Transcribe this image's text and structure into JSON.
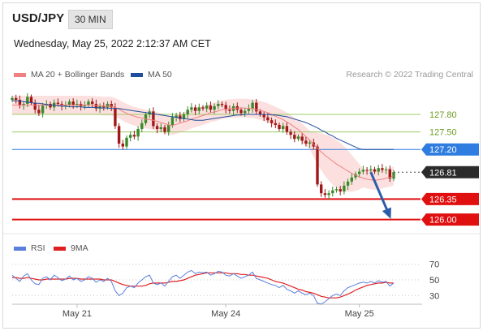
{
  "header": {
    "pair": "USD/JPY",
    "timeframe": "30 MIN"
  },
  "timestamp": "Wednesday, May 25, 2022 2:12:37 AM CET",
  "legend": {
    "ma20": {
      "label": "MA 20 + Bollinger Bands",
      "color": "#f08080"
    },
    "ma50": {
      "label": "MA 50",
      "color": "#1f4e9c"
    }
  },
  "credit": "Research © 2022 Trading Central",
  "rsi_legend": {
    "rsi": {
      "label": "RSI",
      "color": "#5b7fdc"
    },
    "ma9": {
      "label": "9MA",
      "color": "#e02020"
    }
  },
  "chart_data": [
    {
      "type": "candlestick",
      "ylim": [
        125.8,
        128.3
      ],
      "xlim": [
        0,
        100
      ],
      "date_ticks": [
        {
          "label": "May 21",
          "x": 17
        },
        {
          "label": "May 24",
          "x": 56
        },
        {
          "label": "May 25",
          "x": 91
        }
      ],
      "close": [
        128.08,
        128.05,
        127.95,
        127.98,
        128.1,
        128.0,
        127.88,
        127.82,
        127.95,
        127.98,
        127.92,
        128.0,
        127.98,
        127.94,
        127.96,
        128.02,
        127.96,
        127.98,
        127.94,
        127.96,
        128.02,
        127.98,
        127.9,
        127.94,
        127.92,
        127.98,
        127.92,
        127.6,
        127.3,
        127.25,
        127.4,
        127.45,
        127.42,
        127.55,
        127.65,
        127.8,
        127.85,
        127.6,
        127.55,
        127.58,
        127.5,
        127.62,
        127.75,
        127.78,
        127.72,
        127.8,
        127.88,
        127.92,
        127.86,
        127.92,
        127.9,
        127.95,
        127.88,
        127.94,
        127.98,
        127.96,
        127.88,
        127.86,
        127.94,
        127.88,
        127.82,
        127.86,
        127.9,
        128.0,
        127.85,
        127.8,
        127.75,
        127.7,
        127.65,
        127.62,
        127.55,
        127.6,
        127.5,
        127.45,
        127.38,
        127.42,
        127.35,
        127.3,
        127.32,
        127.25,
        126.6,
        126.45,
        126.42,
        126.45,
        126.5,
        126.52,
        126.48,
        126.58,
        126.65,
        126.72,
        126.78,
        126.82,
        126.85,
        126.84,
        126.86,
        126.82,
        126.88,
        126.85,
        126.86,
        126.7,
        126.81
      ],
      "ma20": [
        127.96,
        127.96,
        127.96,
        127.96,
        127.96,
        127.96,
        127.96,
        127.96,
        127.96,
        127.96,
        127.96,
        127.96,
        127.96,
        127.96,
        127.96,
        127.96,
        127.96,
        127.96,
        127.96,
        127.96,
        127.96,
        127.96,
        127.95,
        127.95,
        127.94,
        127.94,
        127.94,
        127.92,
        127.89,
        127.85,
        127.82,
        127.79,
        127.77,
        127.75,
        127.74,
        127.72,
        127.71,
        127.7,
        127.68,
        127.66,
        127.64,
        127.62,
        127.61,
        127.63,
        127.65,
        127.67,
        127.69,
        127.72,
        127.74,
        127.76,
        127.78,
        127.8,
        127.83,
        127.84,
        127.86,
        127.88,
        127.89,
        127.9,
        127.9,
        127.91,
        127.91,
        127.91,
        127.9,
        127.9,
        127.88,
        127.87,
        127.85,
        127.83,
        127.8,
        127.77,
        127.74,
        127.71,
        127.67,
        127.63,
        127.58,
        127.54,
        127.48,
        127.42,
        127.36,
        127.29,
        127.22,
        127.16,
        127.1,
        127.05,
        127.0,
        126.95,
        126.91,
        126.87,
        126.83,
        126.79,
        126.76,
        126.73,
        126.71,
        126.69,
        126.68,
        126.67,
        126.68,
        126.69,
        126.71,
        126.72,
        126.75
      ],
      "ma50": [
        128.04,
        128.03,
        128.03,
        128.02,
        128.01,
        128.0,
        127.99,
        127.99,
        127.98,
        127.97,
        127.96,
        127.96,
        127.95,
        127.94,
        127.94,
        127.93,
        127.93,
        127.93,
        127.93,
        127.92,
        127.92,
        127.92,
        127.92,
        127.91,
        127.91,
        127.91,
        127.9,
        127.9,
        127.9,
        127.89,
        127.88,
        127.87,
        127.86,
        127.85,
        127.84,
        127.83,
        127.82,
        127.81,
        127.8,
        127.79,
        127.78,
        127.77,
        127.76,
        127.75,
        127.74,
        127.73,
        127.72,
        127.71,
        127.7,
        127.7,
        127.7,
        127.71,
        127.72,
        127.73,
        127.74,
        127.75,
        127.76,
        127.77,
        127.78,
        127.79,
        127.79,
        127.8,
        127.8,
        127.8,
        127.8,
        127.8,
        127.8,
        127.8,
        127.79,
        127.79,
        127.78,
        127.77,
        127.76,
        127.74,
        127.72,
        127.7,
        127.68,
        127.66,
        127.63,
        127.6,
        127.57,
        127.53,
        127.5,
        127.46,
        127.43,
        127.39,
        127.36,
        127.33,
        127.3,
        127.27,
        127.24,
        127.21,
        127.2,
        127.2,
        127.2,
        127.2,
        127.2,
        127.2,
        127.2,
        127.2,
        127.2
      ],
      "levels": [
        {
          "label": "127.80",
          "value": 127.8,
          "style": "green-thin",
          "color": "#9ccc65"
        },
        {
          "label": "127.50",
          "value": 127.5,
          "style": "green-thin",
          "color": "#9ccc65"
        },
        {
          "label": "127.20",
          "value": 127.2,
          "style": "pivot",
          "color": "#2f7de1"
        },
        {
          "label": "126.81",
          "value": 126.81,
          "style": "last",
          "color": "#333333"
        },
        {
          "label": "126.35",
          "value": 126.35,
          "style": "support",
          "color": "#e01010"
        },
        {
          "label": "126.00",
          "value": 126.0,
          "style": "support",
          "color": "#e01010"
        }
      ],
      "arrow": {
        "from": [
          94,
          126.81
        ],
        "to": [
          99,
          126.05
        ],
        "color": "#2a5ea8"
      }
    },
    {
      "type": "line",
      "series": [
        {
          "name": "RSI",
          "color": "#5b7fdc"
        },
        {
          "name": "9MA",
          "color": "#e02020"
        }
      ],
      "ylim": [
        22,
        78
      ],
      "yticks": [
        70,
        50,
        30
      ],
      "rsi": [
        56,
        52,
        48,
        55,
        58,
        50,
        45,
        44,
        52,
        54,
        50,
        56,
        53,
        49,
        51,
        55,
        50,
        52,
        48,
        50,
        54,
        52,
        47,
        50,
        48,
        52,
        48,
        36,
        30,
        33,
        40,
        42,
        40,
        46,
        50,
        54,
        56,
        46,
        44,
        46,
        42,
        48,
        54,
        56,
        52,
        56,
        60,
        62,
        58,
        60,
        59,
        60,
        56,
        58,
        61,
        60,
        56,
        55,
        58,
        55,
        52,
        54,
        56,
        60,
        52,
        50,
        48,
        46,
        44,
        43,
        40,
        43,
        38,
        36,
        33,
        36,
        33,
        31,
        33,
        30,
        20,
        19,
        22,
        26,
        30,
        32,
        30,
        36,
        40,
        42,
        44,
        46,
        47,
        46,
        48,
        46,
        49,
        47,
        48,
        42,
        46
      ],
      "ma9": [
        53,
        53,
        52,
        52,
        53,
        52,
        51,
        50,
        50,
        51,
        51,
        51,
        51,
        51,
        51,
        52,
        52,
        52,
        51,
        51,
        51,
        51,
        51,
        51,
        50,
        50,
        50,
        48,
        46,
        44,
        43,
        42,
        42,
        42,
        42,
        43,
        45,
        46,
        46,
        46,
        46,
        47,
        48,
        48,
        49,
        50,
        52,
        54,
        56,
        57,
        58,
        59,
        59,
        59,
        59,
        59,
        59,
        58,
        58,
        58,
        57,
        57,
        56,
        56,
        55,
        54,
        53,
        52,
        50,
        48,
        47,
        46,
        44,
        42,
        40,
        38,
        37,
        35,
        34,
        33,
        31,
        29,
        28,
        27,
        27,
        27,
        28,
        30,
        32,
        34,
        37,
        39,
        41,
        43,
        44,
        45,
        46,
        46,
        47,
        46,
        46
      ]
    }
  ]
}
